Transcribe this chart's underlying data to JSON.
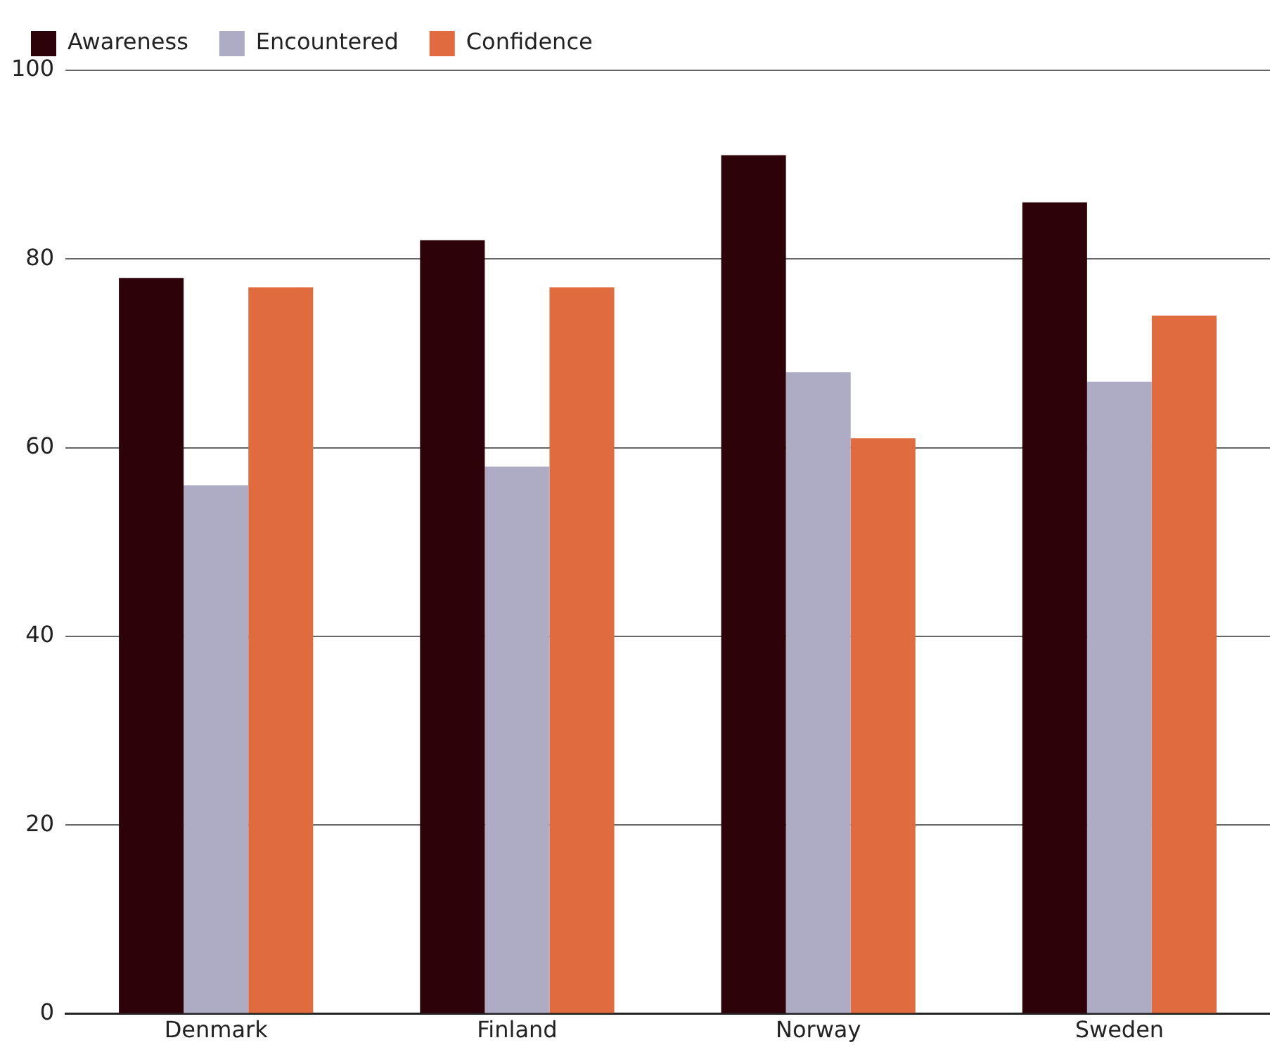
{
  "chart_data": {
    "type": "bar",
    "categories": [
      "Denmark",
      "Finland",
      "Norway",
      "Sweden"
    ],
    "series": [
      {
        "name": "Awareness",
        "color": "#2d0309",
        "values": [
          78,
          82,
          91,
          86
        ]
      },
      {
        "name": "Encountered",
        "color": "#aeabc4",
        "values": [
          56,
          58,
          68,
          67
        ]
      },
      {
        "name": "Confidence",
        "color": "#e06b3e",
        "values": [
          77,
          77,
          61,
          74
        ]
      }
    ],
    "ylim": [
      0,
      100
    ],
    "yticks": [
      0,
      20,
      40,
      60,
      80,
      100
    ],
    "grid": "y",
    "legend": "top left"
  }
}
